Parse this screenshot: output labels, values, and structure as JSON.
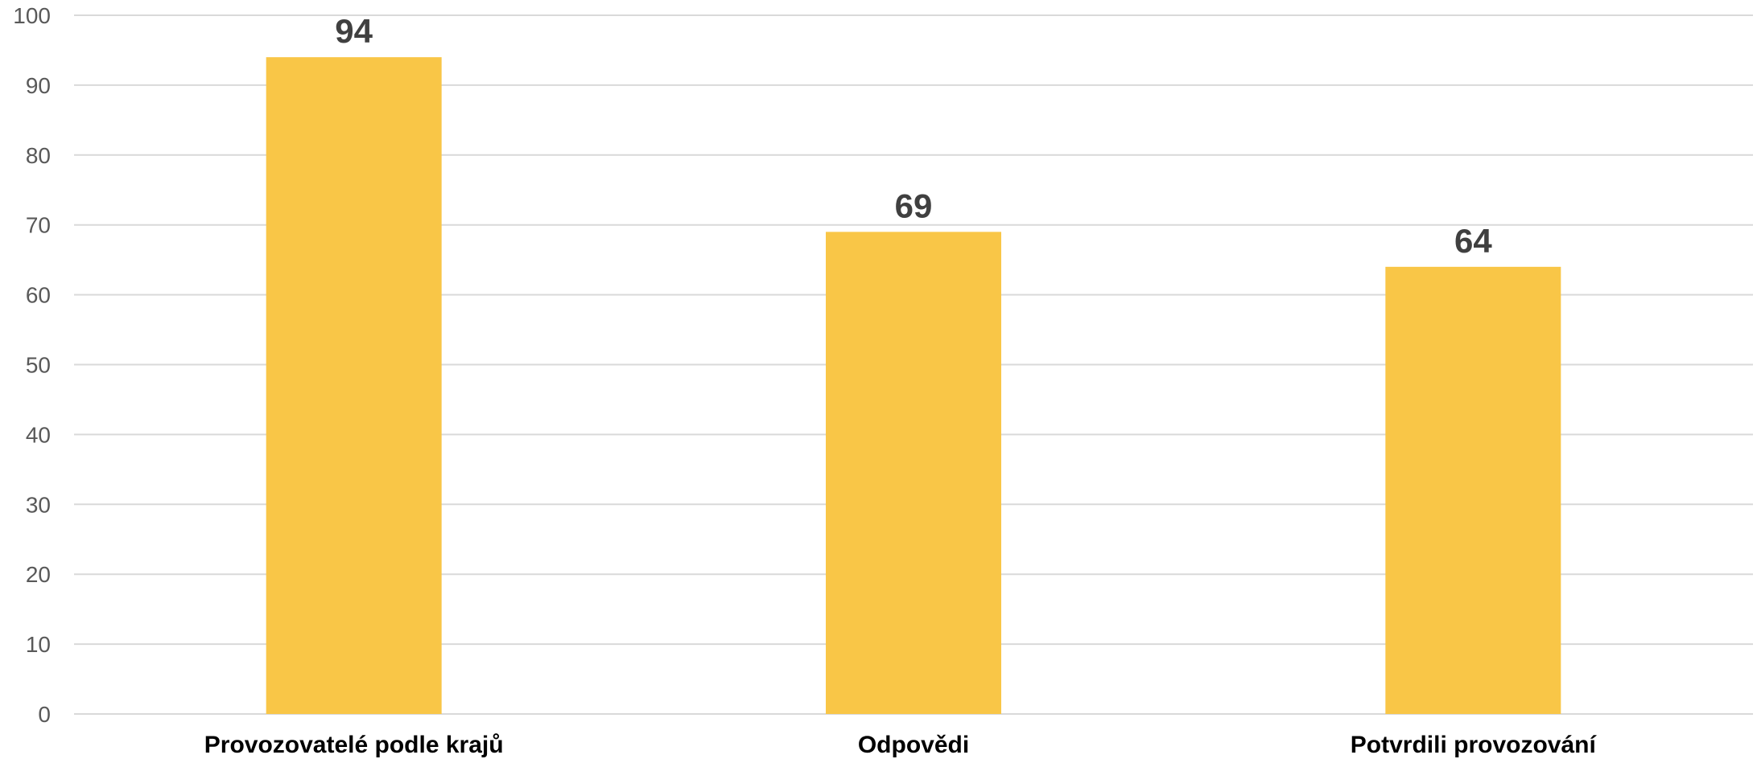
{
  "chart_data": {
    "type": "bar",
    "categories": [
      "Provozovatelé podle krajů",
      "Odpovědi",
      "Potvrdili provozování"
    ],
    "values": [
      94,
      69,
      64
    ],
    "data_labels": [
      "94",
      "69",
      "64"
    ],
    "title": "",
    "xlabel": "",
    "ylabel": "",
    "ylim": [
      0,
      100
    ],
    "yticks": [
      "0",
      "10",
      "20",
      "30",
      "40",
      "50",
      "60",
      "70",
      "80",
      "90",
      "100"
    ],
    "grid": true,
    "legend": "none",
    "colors": {
      "bar": "#F9C647",
      "grid": "#D9D9D9",
      "axis": "#D9D9D9"
    }
  }
}
